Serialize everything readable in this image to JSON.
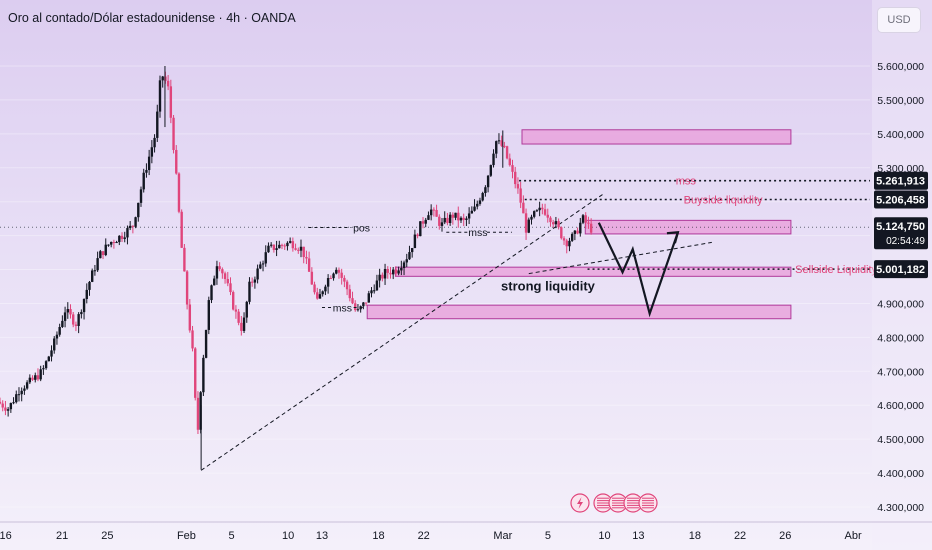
{
  "header": {
    "symbol_title": "Oro al contado/Dólar estadounidense · 4h · OANDA",
    "currency_button": "USD"
  },
  "colors": {
    "up": "#131722",
    "down": "#e0457b",
    "zone_fill": "#e9a3dc",
    "zone_stroke": "#b03a9a",
    "annotation": "#e0457b"
  },
  "chart_data": {
    "type": "candlestick",
    "title": "Oro al contado/Dólar estadounidense · 4h · OANDA",
    "ylim": [
      4255000,
      5660000
    ],
    "y_ticks": [
      4300000,
      4400000,
      4500000,
      4600000,
      4700000,
      4800000,
      4900000,
      5000000,
      5100000,
      5200000,
      5300000,
      5400000,
      5500000,
      5600000
    ],
    "y_tick_labels": [
      "4.300,000",
      "4.400,000",
      "4.500,000",
      "4.600,000",
      "4.700,000",
      "4.800,000",
      "4.900,000",
      "5.000,000",
      "5.100,000",
      "5.200,000",
      "5.300,000",
      "5.400,000",
      "5.500,000",
      "5.600,000"
    ],
    "x_ticks": [
      {
        "label": "16",
        "day": 16
      },
      {
        "label": "21",
        "day": 21
      },
      {
        "label": "25",
        "day": 25
      },
      {
        "label": "Feb",
        "day": 32
      },
      {
        "label": "5",
        "day": 36
      },
      {
        "label": "10",
        "day": 41
      },
      {
        "label": "13",
        "day": 44
      },
      {
        "label": "18",
        "day": 49
      },
      {
        "label": "22",
        "day": 53
      },
      {
        "label": "Mar",
        "day": 60
      },
      {
        "label": "5",
        "day": 64
      },
      {
        "label": "10",
        "day": 69
      },
      {
        "label": "13",
        "day": 72
      },
      {
        "label": "18",
        "day": 77
      },
      {
        "label": "22",
        "day": 81
      },
      {
        "label": "26",
        "day": 85
      },
      {
        "label": "Abr",
        "day": 91
      }
    ],
    "x_range_days": [
      15.5,
      92.5
    ],
    "price_path": [
      [
        15.5,
        4610000
      ],
      [
        16.5,
        4590000
      ],
      [
        17.5,
        4650000
      ],
      [
        18.5,
        4670000
      ],
      [
        19.5,
        4700000
      ],
      [
        20.5,
        4780000
      ],
      [
        21.5,
        4880000
      ],
      [
        22.5,
        4840000
      ],
      [
        23.5,
        4950000
      ],
      [
        24.5,
        5040000
      ],
      [
        25.5,
        5080000
      ],
      [
        26.5,
        5100000
      ],
      [
        27.5,
        5130000
      ],
      [
        28.5,
        5280000
      ],
      [
        29.5,
        5400000
      ],
      [
        30.0,
        5580000
      ],
      [
        30.6,
        5540000
      ],
      [
        31.2,
        5330000
      ],
      [
        31.8,
        5070000
      ],
      [
        32.3,
        4900000
      ],
      [
        32.8,
        4750000
      ],
      [
        33.2,
        4500000
      ],
      [
        33.6,
        4700000
      ],
      [
        34.2,
        4900000
      ],
      [
        35.0,
        5030000
      ],
      [
        35.8,
        4960000
      ],
      [
        36.5,
        4880000
      ],
      [
        37.2,
        4820000
      ],
      [
        37.8,
        4950000
      ],
      [
        38.6,
        5000000
      ],
      [
        39.5,
        5060000
      ],
      [
        40.5,
        5070000
      ],
      [
        41.5,
        5080000
      ],
      [
        42.5,
        5060000
      ],
      [
        43.2,
        4980000
      ],
      [
        43.8,
        4900000
      ],
      [
        44.5,
        4960000
      ],
      [
        45.5,
        5010000
      ],
      [
        46.5,
        4940000
      ],
      [
        47.3,
        4870000
      ],
      [
        48.0,
        4900000
      ],
      [
        48.8,
        4950000
      ],
      [
        49.8,
        4990000
      ],
      [
        50.8,
        5000000
      ],
      [
        51.8,
        5040000
      ],
      [
        52.8,
        5120000
      ],
      [
        53.8,
        5180000
      ],
      [
        54.8,
        5130000
      ],
      [
        55.8,
        5160000
      ],
      [
        56.8,
        5140000
      ],
      [
        57.8,
        5180000
      ],
      [
        58.8,
        5260000
      ],
      [
        59.6,
        5380000
      ],
      [
        60.3,
        5360000
      ],
      [
        61.0,
        5290000
      ],
      [
        61.7,
        5220000
      ],
      [
        62.3,
        5120000
      ],
      [
        63.0,
        5160000
      ],
      [
        63.8,
        5180000
      ],
      [
        64.8,
        5140000
      ],
      [
        65.8,
        5080000
      ],
      [
        66.6,
        5100000
      ],
      [
        67.3,
        5150000
      ],
      [
        68.0,
        5120000
      ]
    ],
    "last_price": 5124750,
    "countdown": "02:54:49",
    "price_labels": [
      {
        "value": 5261913,
        "text": "5.261,913"
      },
      {
        "value": 5206458,
        "text": "5.206,458"
      },
      {
        "value": 5001182,
        "text": "5.001,182"
      }
    ],
    "last_price_text": "5.124,750",
    "zones": [
      {
        "day_from": 61.7,
        "day_to": 85.5,
        "low": 5370000,
        "high": 5412000
      },
      {
        "day_from": 67.3,
        "day_to": 85.5,
        "low": 5105000,
        "high": 5145000
      },
      {
        "day_from": 50.5,
        "day_to": 85.5,
        "low": 4980000,
        "high": 5007000
      },
      {
        "day_from": 48.0,
        "day_to": 85.5,
        "low": 4855000,
        "high": 4895000
      }
    ],
    "level_lines": [
      {
        "value": 5261913,
        "day_from": 61.0,
        "day_to": 92.5,
        "label": "mss",
        "label_day": 76.2
      },
      {
        "value": 5206458,
        "day_from": 61.5,
        "day_to": 92.5,
        "label": "Buyside liquidity",
        "label_day": 79.5
      },
      {
        "value": 5001182,
        "day_from": 67.5,
        "day_to": 92.5,
        "label": "Sellside Liquidity",
        "label_day": 89.5
      }
    ],
    "annotations": [
      {
        "text": "pos",
        "day": 47.5,
        "value": 5124000
      },
      {
        "text": "mss",
        "day": 57.8,
        "value": 5110000
      },
      {
        "text": "mss",
        "day": 45.8,
        "value": 4888000
      },
      {
        "text": "strong liquidity",
        "day": 64.0,
        "value": 4950000
      }
    ],
    "trendlines": [
      {
        "from": [
          33.3,
          4408000
        ],
        "to": [
          69.0,
          5225000
        ]
      },
      {
        "from": [
          62.3,
          4988000
        ],
        "to": [
          78.5,
          5080000
        ]
      }
    ],
    "projection_path": [
      [
        68.5,
        5138000
      ],
      [
        70.6,
        4992000
      ],
      [
        71.5,
        5060000
      ],
      [
        73.0,
        4870000
      ],
      [
        75.5,
        5110000
      ]
    ],
    "projection_arrow_end": [
      75.5,
      5110000
    ]
  }
}
